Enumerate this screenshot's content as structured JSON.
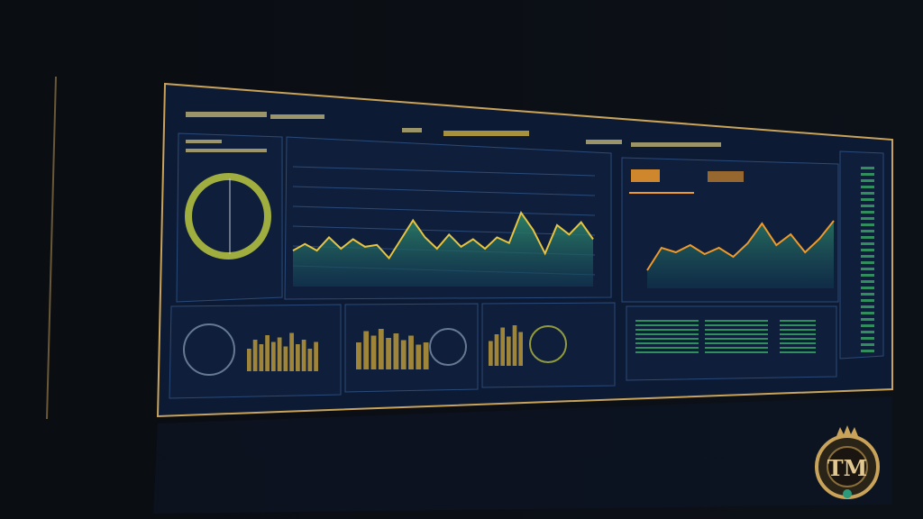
{
  "colors": {
    "background": "#07090d",
    "screen": "#0d1a33",
    "panel": "#0f1f3b",
    "accent_gold": "#e8c440",
    "accent_orange": "#f09a2a",
    "accent_green": "#3fbf6a",
    "area_fill": "#1f6a5a",
    "bezel": "#c9a35a"
  },
  "logo": {
    "text": "TM",
    "icon": "crown-lion-emblem"
  },
  "chart_data": [
    {
      "type": "area",
      "values": [
        38,
        45,
        38,
        52,
        40,
        50,
        42,
        44,
        30,
        50,
        70,
        52,
        40,
        55,
        42,
        50,
        40,
        52,
        46,
        78,
        60,
        35,
        65,
        55,
        68,
        50
      ],
      "grid": true
    },
    {
      "type": "area",
      "values": [
        20,
        45,
        40,
        48,
        38,
        45,
        35,
        50,
        72,
        48,
        60,
        40,
        55,
        75
      ],
      "grid": false
    },
    {
      "type": "bar",
      "values": [
        50,
        70,
        60,
        80,
        65,
        75,
        55,
        85,
        60,
        70,
        50,
        65
      ]
    },
    {
      "type": "bar",
      "values": [
        60,
        85,
        75,
        90,
        70,
        80,
        65,
        75,
        55,
        60
      ]
    },
    {
      "type": "bar",
      "values": [
        55,
        70,
        85,
        65,
        90,
        75
      ]
    }
  ],
  "gauges": [
    {
      "type": "ring"
    },
    {
      "type": "ring"
    },
    {
      "type": "ring"
    }
  ]
}
